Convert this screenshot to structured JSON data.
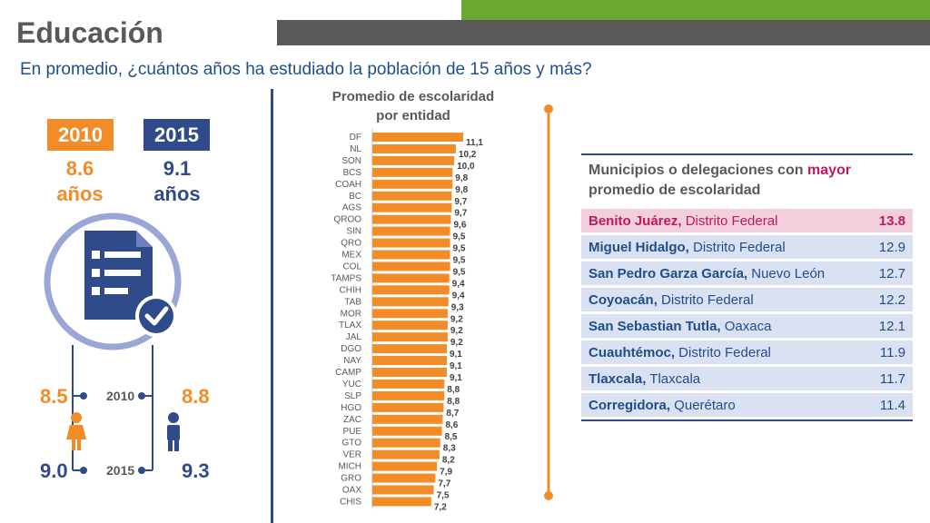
{
  "header": {
    "title": "Educación",
    "subtitle": "En promedio, ¿cuántos años ha estudiado la población de 15 años y más?"
  },
  "left_panel": {
    "badges": [
      {
        "year": "2010",
        "value": "8.6",
        "unit": "años"
      },
      {
        "year": "2015",
        "value": "9.1",
        "unit": "años"
      }
    ],
    "gender": {
      "women_2010": "8.5",
      "women_2015": "9.0",
      "men_2010": "8.8",
      "men_2015": "9.3",
      "year_2010": "2010",
      "year_2015": "2015"
    },
    "icon": "checklist-document-icon"
  },
  "chart_data": {
    "type": "bar",
    "orientation": "horizontal",
    "title": "Promedio de escolaridad\npor entidad",
    "categories": [
      "DF",
      "NL",
      "SON",
      "BCS",
      "COAH",
      "BC",
      "AGS",
      "QROO",
      "SIN",
      "QRO",
      "MEX",
      "COL",
      "TAMPS",
      "CHIH",
      "TAB",
      "MOR",
      "TLAX",
      "JAL",
      "DGO",
      "NAY",
      "CAMP",
      "YUC",
      "SLP",
      "HGO",
      "ZAC",
      "PUE",
      "GTO",
      "VER",
      "MICH",
      "GRO",
      "OAX",
      "CHIS"
    ],
    "values": [
      11.1,
      10.2,
      10.0,
      9.8,
      9.8,
      9.7,
      9.7,
      9.6,
      9.5,
      9.5,
      9.5,
      9.5,
      9.4,
      9.4,
      9.3,
      9.2,
      9.2,
      9.2,
      9.1,
      9.1,
      9.1,
      8.8,
      8.8,
      8.7,
      8.6,
      8.5,
      8.3,
      8.2,
      7.9,
      7.7,
      7.5,
      7.2
    ],
    "labels": [
      "11,1",
      "10,2",
      "10,0",
      "9,8",
      "9,8",
      "9,7",
      "9,7",
      "9,6",
      "9,5",
      "9,5",
      "9,5",
      "9,5",
      "9,4",
      "9,4",
      "9,3",
      "9,2",
      "9,2",
      "9,2",
      "9,1",
      "9,1",
      "9,1",
      "8,8",
      "8,8",
      "8,7",
      "8,6",
      "8,5",
      "8,3",
      "8,2",
      "7,9",
      "7,7",
      "7,5",
      "7,2"
    ],
    "bar_color": "#f28c28"
  },
  "table": {
    "heading_pre": "Municipios o delegaciones con ",
    "heading_accent": "mayor",
    "heading_post": "promedio de escolaridad",
    "rows": [
      {
        "name": "Benito Juárez,",
        "state": " Distrito Federal",
        "value": "13.8"
      },
      {
        "name": "Miguel Hidalgo,",
        "state": " Distrito Federal",
        "value": "12.9"
      },
      {
        "name": "San Pedro Garza García,",
        "state": " Nuevo León",
        "value": "12.7"
      },
      {
        "name": "Coyoacán,",
        "state": " Distrito Federal",
        "value": "12.2"
      },
      {
        "name": "San Sebastian Tutla,",
        "state": " Oaxaca",
        "value": "12.1"
      },
      {
        "name": "Cuauhtémoc,",
        "state": " Distrito Federal",
        "value": "11.9"
      },
      {
        "name": "Tlaxcala,",
        "state": " Tlaxcala",
        "value": "11.7"
      },
      {
        "name": "Corregidora,",
        "state": " Querétaro",
        "value": "11.4"
      }
    ]
  },
  "colors": {
    "orange": "#f28c28",
    "navy": "#2f4b8a",
    "magenta": "#c2185b",
    "green": "#6aa82f"
  }
}
